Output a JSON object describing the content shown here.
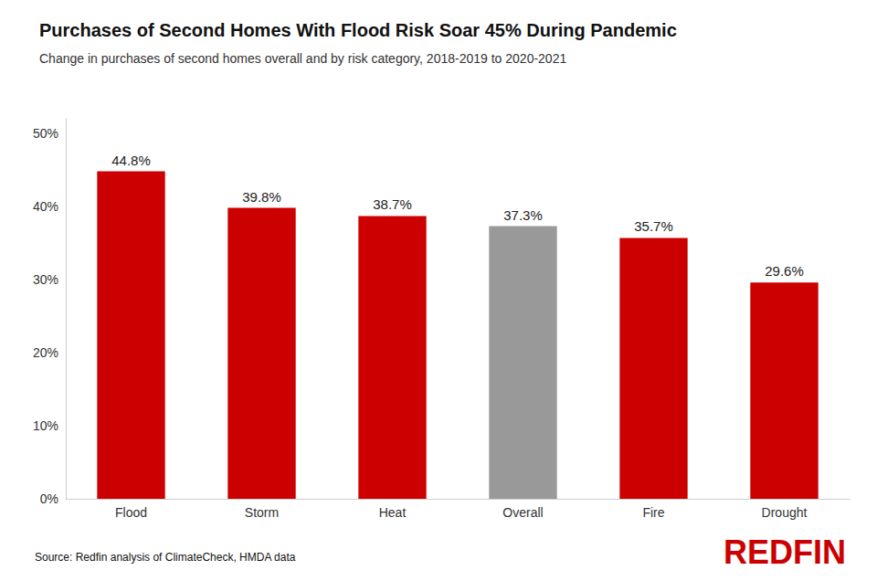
{
  "chart_data": {
    "type": "bar",
    "title": "Purchases of Second Homes With Flood Risk Soar 45% During Pandemic",
    "subtitle": "Change in purchases of second homes overall and by risk category, 2018-2019 to 2020-2021",
    "categories": [
      "Flood",
      "Storm",
      "Heat",
      "Overall",
      "Fire",
      "Drought"
    ],
    "values": [
      44.8,
      39.8,
      38.7,
      37.3,
      35.7,
      29.6
    ],
    "value_labels": [
      "44.8%",
      "39.8%",
      "38.7%",
      "37.3%",
      "35.7%",
      "29.6%"
    ],
    "colors": [
      "#cc0000",
      "#cc0000",
      "#cc0000",
      "#999999",
      "#cc0000",
      "#cc0000"
    ],
    "ylim": [
      0,
      52
    ],
    "yticks": [
      {
        "value": 0,
        "label": "0%"
      },
      {
        "value": 10,
        "label": "10%"
      },
      {
        "value": 20,
        "label": "20%"
      },
      {
        "value": 30,
        "label": "30%"
      },
      {
        "value": 40,
        "label": "40%"
      },
      {
        "value": 50,
        "label": "50%"
      }
    ],
    "grid": false,
    "data_labels": true,
    "annotations": [
      "Source: Redfin analysis of ClimateCheck, HMDA data",
      "REDFIN"
    ]
  }
}
